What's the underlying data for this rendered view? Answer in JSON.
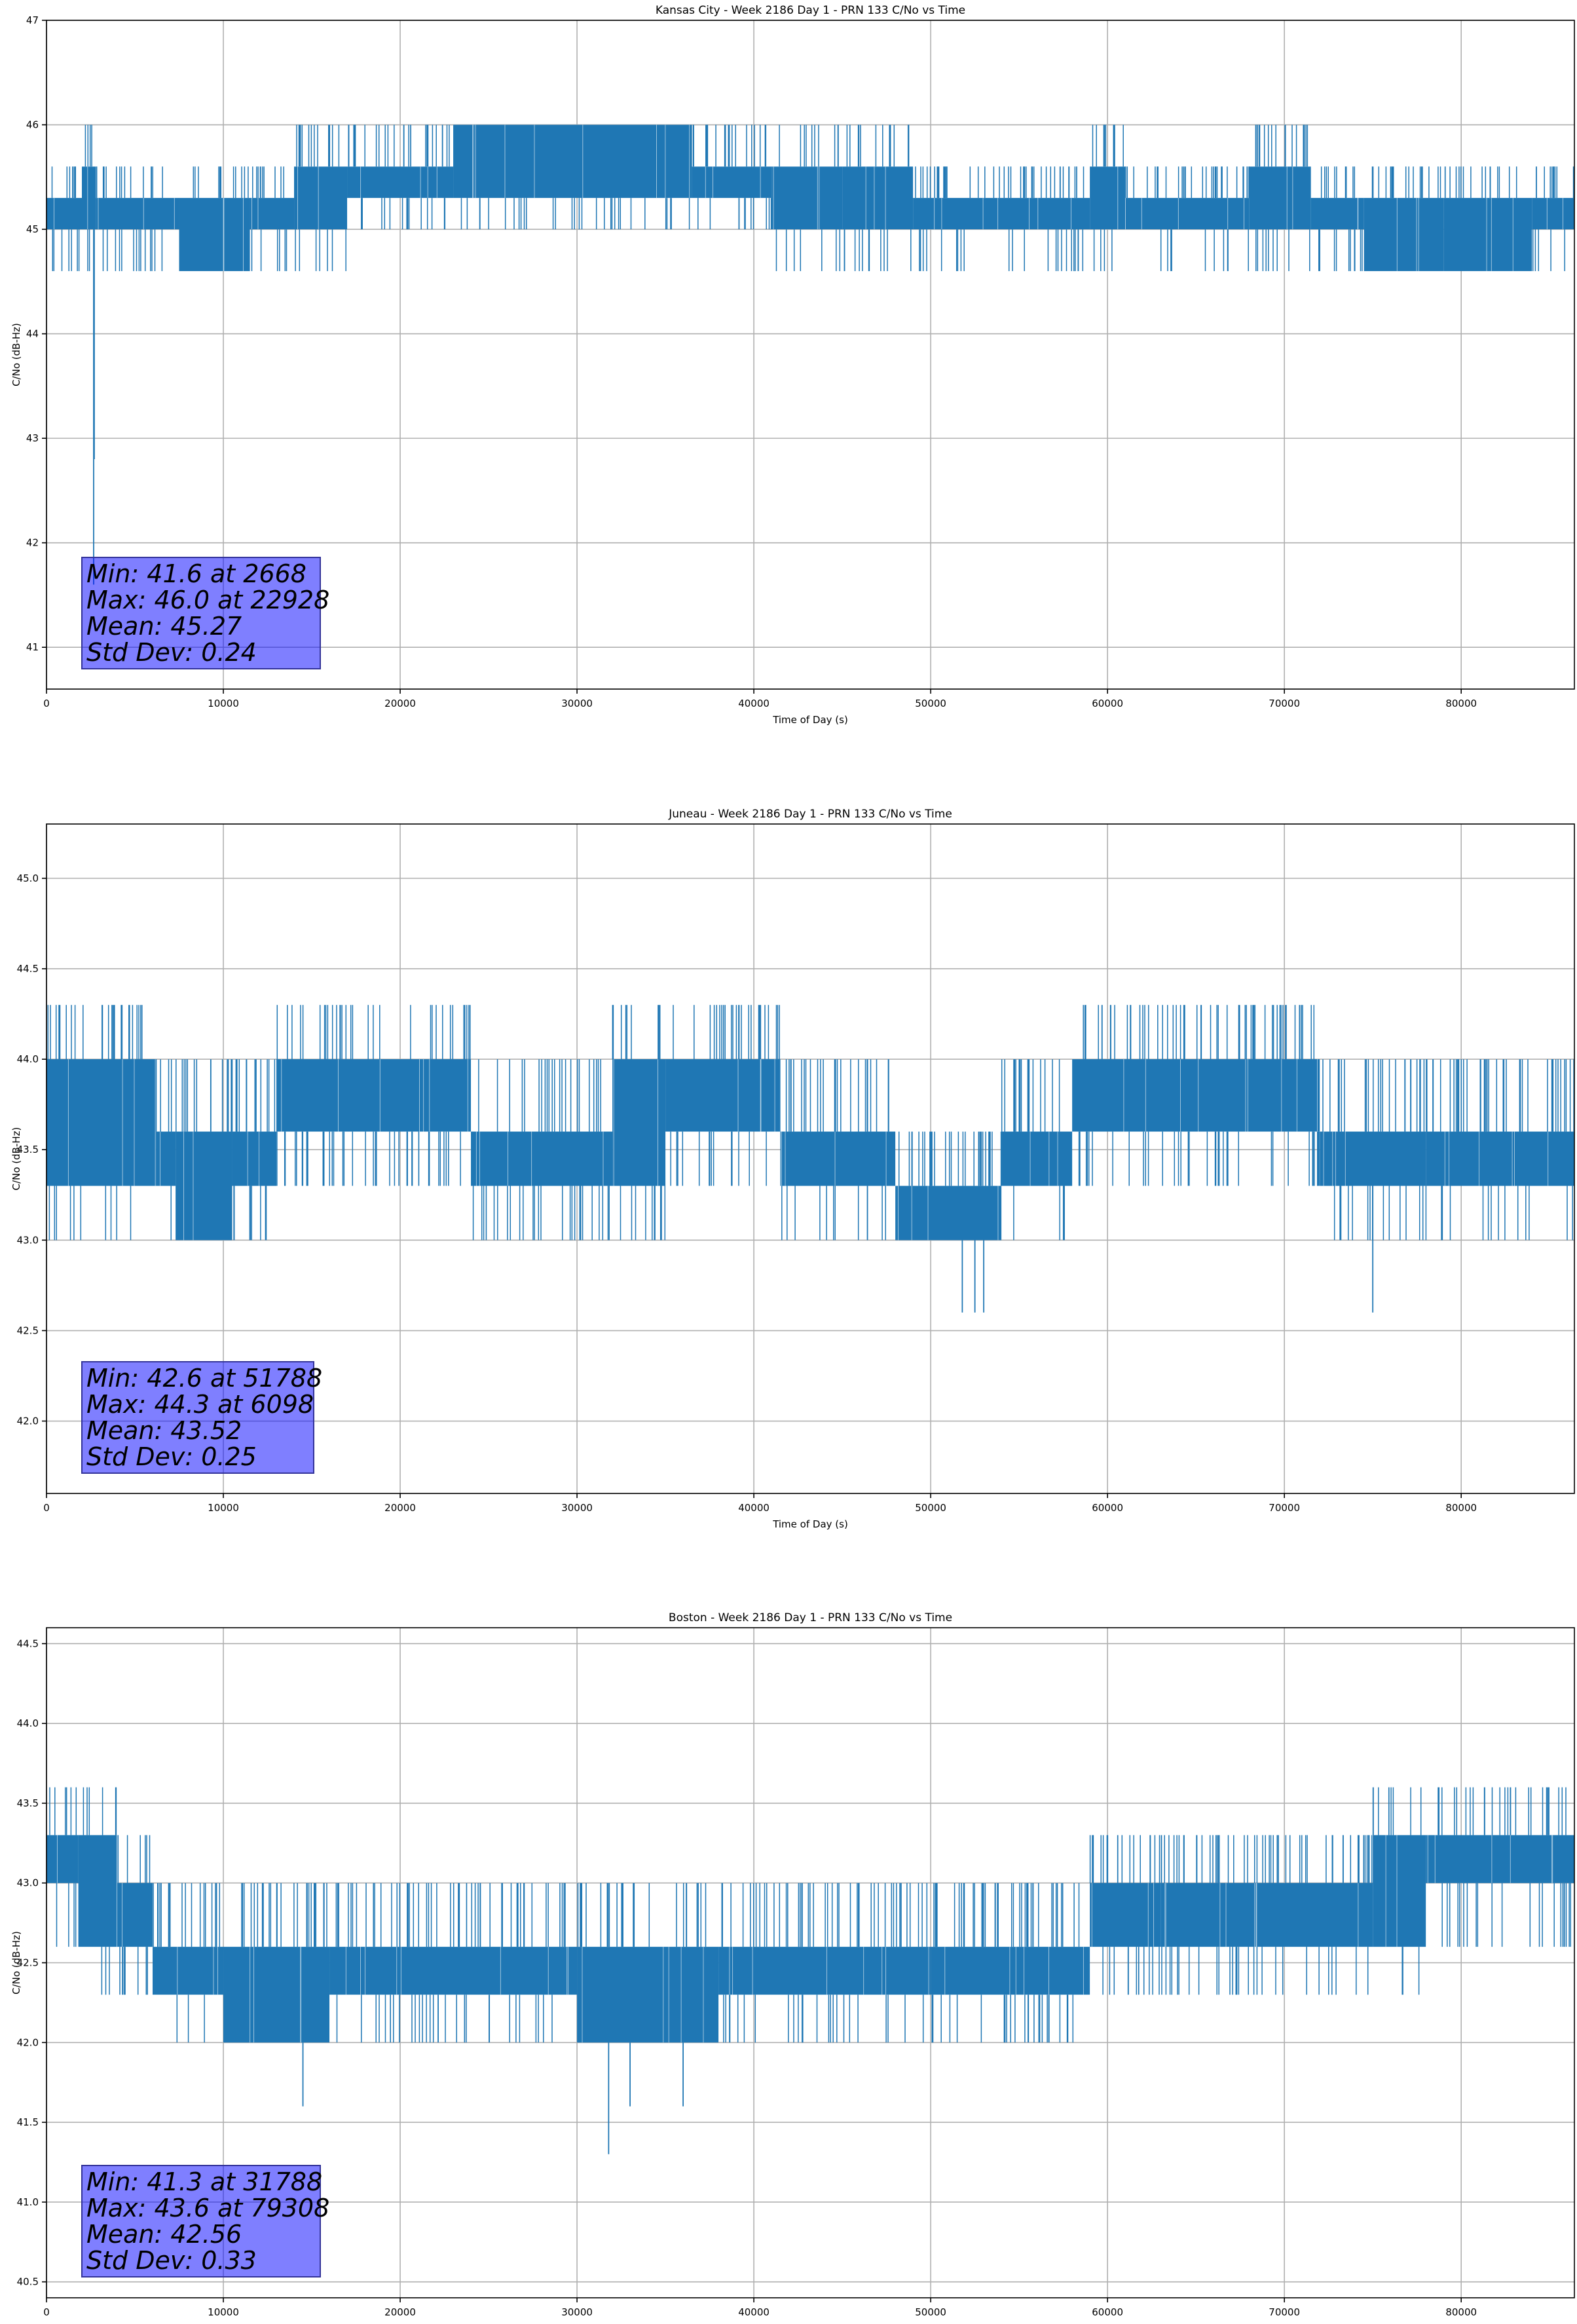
{
  "chart_data": [
    {
      "type": "line",
      "title": "Kansas City - Week 2186 Day 1 - PRN 133 C/No vs Time",
      "xlabel": "Time of Day (s)",
      "ylabel": "C/No (dB-Hz)",
      "xlim": [
        0,
        86400
      ],
      "ylim": [
        40.6,
        47
      ],
      "xticks": [
        0,
        10000,
        20000,
        30000,
        40000,
        50000,
        60000,
        70000,
        80000
      ],
      "yticks": [
        41,
        42,
        43,
        44,
        45,
        46,
        47
      ],
      "ytick_labels": [
        "41",
        "42",
        "43",
        "44",
        "45",
        "46",
        "47"
      ],
      "grid": true,
      "series_color": "#1f77b4",
      "levels": [
        44.6,
        45.0,
        45.3,
        45.6,
        46.0
      ],
      "segments": [
        {
          "x0": 0,
          "x1": 2000,
          "lo": 45.0,
          "hi": 45.3
        },
        {
          "x0": 2000,
          "x1": 2800,
          "lo": 45.0,
          "hi": 45.6
        },
        {
          "x0": 2800,
          "x1": 7500,
          "lo": 45.0,
          "hi": 45.3
        },
        {
          "x0": 7500,
          "x1": 11500,
          "lo": 44.6,
          "hi": 45.3
        },
        {
          "x0": 11500,
          "x1": 14000,
          "lo": 45.0,
          "hi": 45.3
        },
        {
          "x0": 14000,
          "x1": 17000,
          "lo": 45.0,
          "hi": 45.6
        },
        {
          "x0": 17000,
          "x1": 23000,
          "lo": 45.3,
          "hi": 45.6
        },
        {
          "x0": 23000,
          "x1": 36500,
          "lo": 45.3,
          "hi": 46.0
        },
        {
          "x0": 36500,
          "x1": 41000,
          "lo": 45.3,
          "hi": 45.6
        },
        {
          "x0": 41000,
          "x1": 45000,
          "lo": 45.0,
          "hi": 45.6
        },
        {
          "x0": 45000,
          "x1": 49000,
          "lo": 45.0,
          "hi": 45.6
        },
        {
          "x0": 49000,
          "x1": 59000,
          "lo": 45.0,
          "hi": 45.3
        },
        {
          "x0": 59000,
          "x1": 61000,
          "lo": 45.0,
          "hi": 45.6
        },
        {
          "x0": 61000,
          "x1": 68000,
          "lo": 45.0,
          "hi": 45.3
        },
        {
          "x0": 68000,
          "x1": 71500,
          "lo": 45.0,
          "hi": 45.6
        },
        {
          "x0": 71500,
          "x1": 74500,
          "lo": 45.0,
          "hi": 45.3
        },
        {
          "x0": 74500,
          "x1": 79000,
          "lo": 44.6,
          "hi": 45.3
        },
        {
          "x0": 79000,
          "x1": 84000,
          "lo": 44.6,
          "hi": 45.3
        },
        {
          "x0": 84000,
          "x1": 86400,
          "lo": 45.0,
          "hi": 45.3
        }
      ],
      "dips": [
        {
          "x": 2668,
          "y": 41.6
        },
        {
          "x": 2700,
          "y": 42.8
        }
      ],
      "stats": {
        "min": "Min: 41.6 at 2668",
        "max": "Max: 46.0 at 22928",
        "mean": "Mean: 45.27",
        "std": "Std Dev: 0.24"
      }
    },
    {
      "type": "line",
      "title": "Juneau - Week 2186 Day 1 - PRN 133 C/No vs Time",
      "xlabel": "Time of Day (s)",
      "ylabel": "C/No (dB-Hz)",
      "xlim": [
        0,
        86400
      ],
      "ylim": [
        41.6,
        45.3
      ],
      "xticks": [
        0,
        10000,
        20000,
        30000,
        40000,
        50000,
        60000,
        70000,
        80000
      ],
      "yticks": [
        42.0,
        42.5,
        43.0,
        43.5,
        44.0,
        44.5,
        45.0
      ],
      "ytick_labels": [
        "42.0",
        "42.5",
        "43.0",
        "43.5",
        "44.0",
        "44.5",
        "45.0"
      ],
      "grid": true,
      "series_color": "#1f77b4",
      "levels": [
        43.0,
        43.3,
        43.6,
        44.0,
        44.3
      ],
      "segments": [
        {
          "x0": 0,
          "x1": 6200,
          "lo": 43.3,
          "hi": 44.0
        },
        {
          "x0": 6200,
          "x1": 7300,
          "lo": 43.3,
          "hi": 43.6
        },
        {
          "x0": 7300,
          "x1": 10500,
          "lo": 43.0,
          "hi": 43.6
        },
        {
          "x0": 10500,
          "x1": 13000,
          "lo": 43.3,
          "hi": 43.6
        },
        {
          "x0": 13000,
          "x1": 24000,
          "lo": 43.6,
          "hi": 44.0
        },
        {
          "x0": 24000,
          "x1": 32000,
          "lo": 43.3,
          "hi": 43.6
        },
        {
          "x0": 32000,
          "x1": 35000,
          "lo": 43.3,
          "hi": 44.0
        },
        {
          "x0": 35000,
          "x1": 41500,
          "lo": 43.6,
          "hi": 44.0
        },
        {
          "x0": 41500,
          "x1": 48000,
          "lo": 43.3,
          "hi": 43.6
        },
        {
          "x0": 48000,
          "x1": 54000,
          "lo": 43.0,
          "hi": 43.3
        },
        {
          "x0": 54000,
          "x1": 58000,
          "lo": 43.3,
          "hi": 43.6
        },
        {
          "x0": 58000,
          "x1": 72000,
          "lo": 43.6,
          "hi": 44.0
        },
        {
          "x0": 72000,
          "x1": 78000,
          "lo": 43.3,
          "hi": 43.6
        },
        {
          "x0": 78000,
          "x1": 86400,
          "lo": 43.3,
          "hi": 43.6
        }
      ],
      "dips": [
        {
          "x": 51788,
          "y": 42.6
        },
        {
          "x": 52500,
          "y": 42.6
        },
        {
          "x": 53000,
          "y": 42.6
        },
        {
          "x": 75000,
          "y": 42.6
        }
      ],
      "stats": {
        "min": "Min: 42.6 at 51788",
        "max": "Max: 44.3 at 6098",
        "mean": "Mean: 43.52",
        "std": "Std Dev: 0.25"
      }
    },
    {
      "type": "line",
      "title": "Boston - Week 2186 Day 1 - PRN 133 C/No vs Time",
      "xlabel": "Time of Day (s)",
      "ylabel": "C/No (dB-Hz)",
      "xlim": [
        0,
        86400
      ],
      "ylim": [
        40.4,
        44.6
      ],
      "xticks": [
        0,
        10000,
        20000,
        30000,
        40000,
        50000,
        60000,
        70000,
        80000
      ],
      "yticks": [
        40.5,
        41.0,
        41.5,
        42.0,
        42.5,
        43.0,
        43.5,
        44.0,
        44.5
      ],
      "ytick_labels": [
        "40.5",
        "41.0",
        "41.5",
        "42.0",
        "42.5",
        "43.0",
        "43.5",
        "44.0",
        "44.5"
      ],
      "grid": true,
      "series_color": "#1f77b4",
      "levels": [
        42.0,
        42.3,
        42.6,
        43.0,
        43.3,
        43.6
      ],
      "segments": [
        {
          "x0": 0,
          "x1": 1800,
          "lo": 43.0,
          "hi": 43.3
        },
        {
          "x0": 1800,
          "x1": 4000,
          "lo": 42.6,
          "hi": 43.3
        },
        {
          "x0": 4000,
          "x1": 6000,
          "lo": 42.6,
          "hi": 43.0
        },
        {
          "x0": 6000,
          "x1": 10000,
          "lo": 42.3,
          "hi": 42.6
        },
        {
          "x0": 10000,
          "x1": 16000,
          "lo": 42.0,
          "hi": 42.6
        },
        {
          "x0": 16000,
          "x1": 30000,
          "lo": 42.3,
          "hi": 42.6
        },
        {
          "x0": 30000,
          "x1": 38000,
          "lo": 42.0,
          "hi": 42.6
        },
        {
          "x0": 38000,
          "x1": 50000,
          "lo": 42.3,
          "hi": 42.6
        },
        {
          "x0": 50000,
          "x1": 59000,
          "lo": 42.3,
          "hi": 42.6
        },
        {
          "x0": 59000,
          "x1": 63000,
          "lo": 42.6,
          "hi": 43.0
        },
        {
          "x0": 63000,
          "x1": 75000,
          "lo": 42.6,
          "hi": 43.0
        },
        {
          "x0": 75000,
          "x1": 78000,
          "lo": 42.6,
          "hi": 43.3
        },
        {
          "x0": 78000,
          "x1": 86400,
          "lo": 43.0,
          "hi": 43.3
        }
      ],
      "dips": [
        {
          "x": 14500,
          "y": 41.6
        },
        {
          "x": 31788,
          "y": 41.3
        },
        {
          "x": 33000,
          "y": 41.6
        },
        {
          "x": 36000,
          "y": 41.6
        }
      ],
      "stats": {
        "min": "Min: 41.3 at 31788",
        "max": "Max: 43.6 at 79308",
        "mean": "Mean: 42.56",
        "std": "Std Dev: 0.33"
      }
    }
  ]
}
